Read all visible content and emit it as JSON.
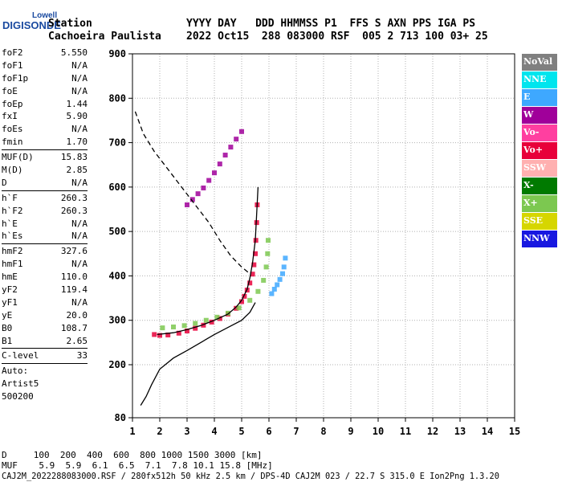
{
  "logo": {
    "top": "Lowell",
    "main": "DIGISONDE"
  },
  "header": {
    "line1_left": "Station",
    "line1_right": "YYYY DAY   DDD HHMMSS P1  FFS S AXN PPS IGA PS",
    "line2_left": "Cachoeira Paulista",
    "line2_right": "2022 Oct15  288 083000 RSF  005 2 713 100 03+ 25"
  },
  "sidebar": {
    "group1": [
      {
        "k": "foF2",
        "v": "5.550"
      },
      {
        "k": "foF1",
        "v": "N/A"
      },
      {
        "k": "foF1p",
        "v": "N/A"
      },
      {
        "k": "foE",
        "v": "N/A"
      },
      {
        "k": "foEp",
        "v": "1.44"
      },
      {
        "k": "fxI",
        "v": "5.90"
      },
      {
        "k": "foEs",
        "v": "N/A"
      },
      {
        "k": "fmin",
        "v": "1.70"
      }
    ],
    "group2": [
      {
        "k": "MUF(D)",
        "v": "15.83"
      },
      {
        "k": "M(D)",
        "v": "2.85"
      },
      {
        "k": "D",
        "v": "N/A"
      }
    ],
    "group3": [
      {
        "k": "h`F",
        "v": "260.3"
      },
      {
        "k": "h`F2",
        "v": "260.3"
      },
      {
        "k": "h`E",
        "v": "N/A"
      },
      {
        "k": "h`Es",
        "v": "N/A"
      }
    ],
    "group4": [
      {
        "k": "hmF2",
        "v": "327.6"
      },
      {
        "k": "hmF1",
        "v": "N/A"
      },
      {
        "k": "hmE",
        "v": "110.0"
      },
      {
        "k": "yF2",
        "v": "119.4"
      },
      {
        "k": "yF1",
        "v": "N/A"
      },
      {
        "k": "yE",
        "v": "20.0"
      },
      {
        "k": "B0",
        "v": "108.7"
      },
      {
        "k": "B1",
        "v": "2.65"
      }
    ],
    "group5": [
      {
        "k": "C-level",
        "v": "33"
      }
    ],
    "auto": [
      "Auto:",
      "Artist5",
      "500200"
    ]
  },
  "legend": [
    {
      "label": "NoVal",
      "color": "#808080"
    },
    {
      "label": "NNE",
      "color": "#00e5ee"
    },
    {
      "label": "E",
      "color": "#3ea8ff"
    },
    {
      "label": "W",
      "color": "#a0009a"
    },
    {
      "label": "Vo-",
      "color": "#ff3fa0"
    },
    {
      "label": "Vo+",
      "color": "#e8003a"
    },
    {
      "label": "SSW",
      "color": "#ffb0b0"
    },
    {
      "label": "X-",
      "color": "#007a00"
    },
    {
      "label": "X+",
      "color": "#7cc850"
    },
    {
      "label": "SSE",
      "color": "#d6d600"
    },
    {
      "label": "NNW",
      "color": "#1818e0"
    }
  ],
  "footer": {
    "line1": "D     100  200  400  600  800 1000 1500 3000 [km]",
    "line2": "MUF    5.9  5.9  6.1  6.5  7.1  7.8 10.1 15.8 [MHz]",
    "line3": "CAJ2M_2022288083000.RSF / 280fx512h 50 kHz 2.5 km / DPS-4D CAJ2M 023 / 22.7 S 315.0 E Ion2Png 1.3.20"
  },
  "chart_data": {
    "type": "scatter",
    "x_ticks": [
      1,
      2,
      3,
      4,
      5,
      6,
      7,
      8,
      9,
      10,
      11,
      12,
      13,
      14,
      15
    ],
    "y_ticks": [
      80,
      200,
      300,
      400,
      500,
      600,
      700,
      800,
      900
    ],
    "xlim": [
      1,
      15
    ],
    "ylim": [
      80,
      900
    ],
    "grid": true,
    "series": [
      {
        "name": "Vo+",
        "points": [
          [
            1.8,
            268
          ],
          [
            2.0,
            266
          ],
          [
            2.3,
            267
          ],
          [
            2.7,
            271
          ],
          [
            3.0,
            276
          ],
          [
            3.3,
            282
          ],
          [
            3.6,
            289
          ],
          [
            3.9,
            296
          ],
          [
            4.2,
            304
          ],
          [
            4.5,
            314
          ],
          [
            4.8,
            327
          ],
          [
            5.0,
            342
          ],
          [
            5.1,
            354
          ],
          [
            5.2,
            368
          ],
          [
            5.3,
            384
          ],
          [
            5.4,
            404
          ],
          [
            5.45,
            425
          ],
          [
            5.5,
            450
          ],
          [
            5.52,
            480
          ],
          [
            5.55,
            520
          ],
          [
            5.57,
            560
          ]
        ]
      },
      {
        "name": "X+",
        "points": [
          [
            2.1,
            283
          ],
          [
            2.5,
            285
          ],
          [
            2.9,
            288
          ],
          [
            3.3,
            293
          ],
          [
            3.7,
            300
          ],
          [
            4.1,
            307
          ],
          [
            4.5,
            316
          ],
          [
            4.9,
            328
          ],
          [
            5.3,
            345
          ],
          [
            5.6,
            365
          ],
          [
            5.8,
            390
          ],
          [
            5.9,
            420
          ],
          [
            5.95,
            450
          ],
          [
            5.97,
            480
          ]
        ]
      },
      {
        "name": "E",
        "points": [
          [
            6.1,
            360
          ],
          [
            6.2,
            370
          ],
          [
            6.3,
            380
          ],
          [
            6.4,
            392
          ],
          [
            6.5,
            405
          ],
          [
            6.55,
            420
          ],
          [
            6.6,
            440
          ]
        ]
      },
      {
        "name": "W",
        "points": [
          [
            3.0,
            560
          ],
          [
            3.2,
            572
          ],
          [
            3.4,
            585
          ],
          [
            3.6,
            598
          ],
          [
            3.8,
            615
          ],
          [
            4.0,
            632
          ],
          [
            4.2,
            652
          ],
          [
            4.4,
            672
          ],
          [
            4.6,
            690
          ],
          [
            4.8,
            708
          ],
          [
            5.0,
            725
          ]
        ]
      }
    ],
    "lines": [
      {
        "name": "profile",
        "points": [
          [
            1.3,
            108
          ],
          [
            1.5,
            128
          ],
          [
            1.7,
            155
          ],
          [
            2.0,
            190
          ],
          [
            2.5,
            215
          ],
          [
            3.0,
            232
          ],
          [
            3.5,
            250
          ],
          [
            4.0,
            268
          ],
          [
            4.5,
            284
          ],
          [
            5.0,
            300
          ],
          [
            5.3,
            318
          ],
          [
            5.5,
            340
          ]
        ]
      },
      {
        "name": "trace",
        "points": [
          [
            1.9,
            268
          ],
          [
            2.5,
            272
          ],
          [
            3.0,
            279
          ],
          [
            3.5,
            288
          ],
          [
            4.0,
            300
          ],
          [
            4.5,
            314
          ],
          [
            4.8,
            330
          ],
          [
            5.0,
            345
          ],
          [
            5.2,
            370
          ],
          [
            5.3,
            395
          ],
          [
            5.4,
            430
          ],
          [
            5.5,
            480
          ],
          [
            5.55,
            540
          ],
          [
            5.6,
            600
          ]
        ]
      },
      {
        "name": "MUF dashed",
        "points": [
          [
            1.1,
            770
          ],
          [
            1.4,
            720
          ],
          [
            1.8,
            680
          ],
          [
            2.3,
            640
          ],
          [
            2.8,
            600
          ],
          [
            3.3,
            560
          ],
          [
            3.8,
            520
          ],
          [
            4.2,
            480
          ],
          [
            4.6,
            445
          ],
          [
            5.0,
            420
          ],
          [
            5.3,
            405
          ]
        ]
      }
    ]
  }
}
